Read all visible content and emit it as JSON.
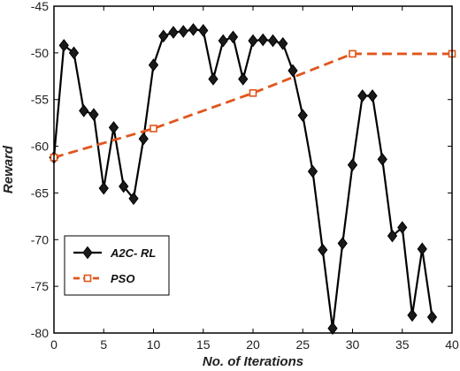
{
  "chart_data": {
    "type": "line",
    "title": "",
    "xlabel": "No. of Iterations",
    "ylabel": "Reward",
    "xlim": [
      0,
      40
    ],
    "ylim": [
      -80,
      -45
    ],
    "xticks": [
      0,
      5,
      10,
      15,
      20,
      25,
      30,
      35,
      40
    ],
    "yticks": [
      -80,
      -75,
      -70,
      -65,
      -60,
      -55,
      -50,
      -45
    ],
    "grid": false,
    "legend_position": "bottom-left",
    "series": [
      {
        "name": "A2C- RL",
        "color": "#000000",
        "line_style": "solid",
        "marker": "diamond",
        "x": [
          0,
          1,
          2,
          3,
          4,
          5,
          6,
          7,
          8,
          9,
          10,
          11,
          12,
          13,
          14,
          15,
          16,
          17,
          18,
          19,
          20,
          21,
          22,
          23,
          24,
          25,
          26,
          27,
          28,
          29,
          30,
          31,
          32,
          33,
          34,
          35,
          36,
          37,
          38
        ],
        "y": [
          -61.2,
          -49.2,
          -50.0,
          -56.2,
          -56.6,
          -64.5,
          -58.0,
          -64.3,
          -65.6,
          -59.2,
          -51.3,
          -48.2,
          -47.8,
          -47.7,
          -47.5,
          -47.6,
          -52.8,
          -48.7,
          -48.3,
          -52.8,
          -48.7,
          -48.6,
          -48.7,
          -49.0,
          -51.9,
          -56.7,
          -62.7,
          -71.1,
          -79.5,
          -70.4,
          -62.0,
          -54.6,
          -54.6,
          -61.4,
          -69.6,
          -68.7,
          -78.1,
          -71.0,
          -78.3
        ]
      },
      {
        "name": "PSO",
        "color": "#E0561C",
        "line_style": "dashed",
        "marker": "square",
        "x": [
          0,
          10,
          20,
          30,
          40
        ],
        "y": [
          -61.2,
          -58.1,
          -54.3,
          -50.1,
          -50.1
        ]
      }
    ]
  }
}
